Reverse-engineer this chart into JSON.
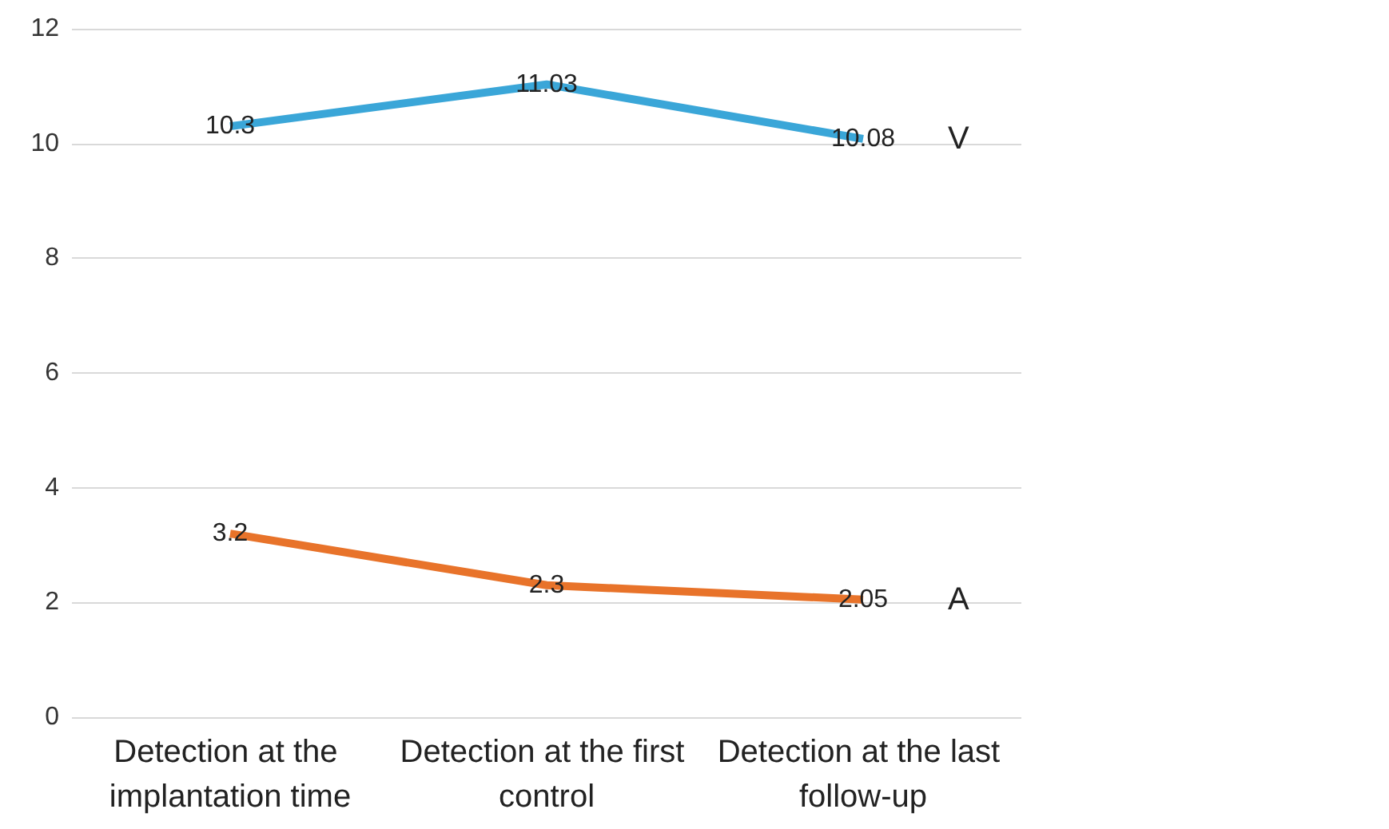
{
  "chart_data": {
    "type": "line",
    "categories": [
      "Detection at the implantation time",
      "Detection at the first control",
      "Detection at the last follow-up"
    ],
    "series": [
      {
        "name": "V",
        "color": "#3aa6d8",
        "values": [
          10.3,
          11.03,
          10.08
        ]
      },
      {
        "name": "A",
        "color": "#e8732a",
        "values": [
          3.2,
          2.3,
          2.05
        ]
      }
    ],
    "ylim": [
      0,
      12
    ],
    "yticks": [
      0,
      2,
      4,
      6,
      8,
      10,
      12
    ],
    "grid": "y",
    "legend": false,
    "data_labels": true,
    "marker": "none"
  }
}
